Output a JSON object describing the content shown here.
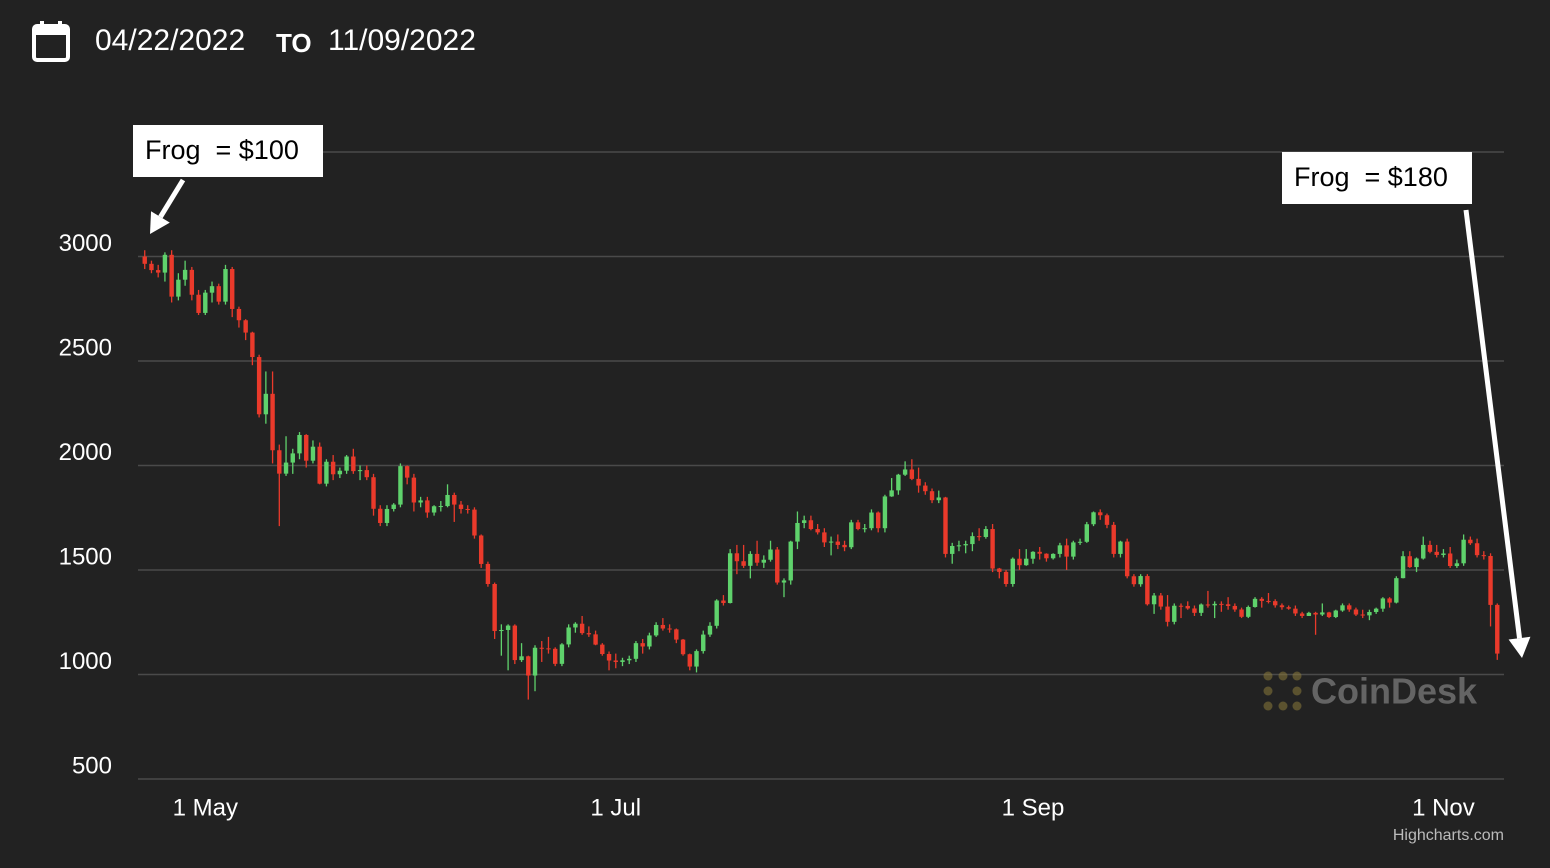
{
  "header": {
    "start": "04/22/2022",
    "connector": "TO",
    "end": "11/09/2022"
  },
  "chart_data": {
    "type": "candlestick",
    "x": [
      "2022-04-22",
      "2022-04-23",
      "2022-04-24",
      "2022-04-25",
      "2022-04-26",
      "2022-04-27",
      "2022-04-28",
      "2022-04-29",
      "2022-04-30",
      "2022-05-01",
      "2022-05-02",
      "2022-05-03",
      "2022-05-04",
      "2022-05-05",
      "2022-05-06",
      "2022-05-07",
      "2022-05-08",
      "2022-05-09",
      "2022-05-10",
      "2022-05-11",
      "2022-05-12",
      "2022-05-13",
      "2022-05-14",
      "2022-05-15",
      "2022-05-16",
      "2022-05-17",
      "2022-05-18",
      "2022-05-19",
      "2022-05-20",
      "2022-05-21",
      "2022-05-22",
      "2022-05-23",
      "2022-05-24",
      "2022-05-25",
      "2022-05-26",
      "2022-05-27",
      "2022-05-28",
      "2022-05-29",
      "2022-05-30",
      "2022-05-31",
      "2022-06-01",
      "2022-06-02",
      "2022-06-03",
      "2022-06-04",
      "2022-06-05",
      "2022-06-06",
      "2022-06-07",
      "2022-06-08",
      "2022-06-09",
      "2022-06-10",
      "2022-06-11",
      "2022-06-12",
      "2022-06-13",
      "2022-06-14",
      "2022-06-15",
      "2022-06-16",
      "2022-06-17",
      "2022-06-18",
      "2022-06-19",
      "2022-06-20",
      "2022-06-21",
      "2022-06-22",
      "2022-06-23",
      "2022-06-24",
      "2022-06-25",
      "2022-06-26",
      "2022-06-27",
      "2022-06-28",
      "2022-06-29",
      "2022-06-30",
      "2022-07-01",
      "2022-07-02",
      "2022-07-03",
      "2022-07-04",
      "2022-07-05",
      "2022-07-06",
      "2022-07-07",
      "2022-07-08",
      "2022-07-09",
      "2022-07-10",
      "2022-07-11",
      "2022-07-12",
      "2022-07-13",
      "2022-07-14",
      "2022-07-15",
      "2022-07-16",
      "2022-07-17",
      "2022-07-18",
      "2022-07-19",
      "2022-07-20",
      "2022-07-21",
      "2022-07-22",
      "2022-07-23",
      "2022-07-24",
      "2022-07-25",
      "2022-07-26",
      "2022-07-27",
      "2022-07-28",
      "2022-07-29",
      "2022-07-30",
      "2022-07-31",
      "2022-08-01",
      "2022-08-02",
      "2022-08-03",
      "2022-08-04",
      "2022-08-05",
      "2022-08-06",
      "2022-08-07",
      "2022-08-08",
      "2022-08-09",
      "2022-08-10",
      "2022-08-11",
      "2022-08-12",
      "2022-08-13",
      "2022-08-14",
      "2022-08-15",
      "2022-08-16",
      "2022-08-17",
      "2022-08-18",
      "2022-08-19",
      "2022-08-20",
      "2022-08-21",
      "2022-08-22",
      "2022-08-23",
      "2022-08-24",
      "2022-08-25",
      "2022-08-26",
      "2022-08-27",
      "2022-08-28",
      "2022-08-29",
      "2022-08-30",
      "2022-08-31",
      "2022-09-01",
      "2022-09-02",
      "2022-09-03",
      "2022-09-04",
      "2022-09-05",
      "2022-09-06",
      "2022-09-07",
      "2022-09-08",
      "2022-09-09",
      "2022-09-10",
      "2022-09-11",
      "2022-09-12",
      "2022-09-13",
      "2022-09-14",
      "2022-09-15",
      "2022-09-16",
      "2022-09-17",
      "2022-09-18",
      "2022-09-19",
      "2022-09-20",
      "2022-09-21",
      "2022-09-22",
      "2022-09-23",
      "2022-09-24",
      "2022-09-25",
      "2022-09-26",
      "2022-09-27",
      "2022-09-28",
      "2022-09-29",
      "2022-09-30",
      "2022-10-01",
      "2022-10-02",
      "2022-10-03",
      "2022-10-04",
      "2022-10-05",
      "2022-10-06",
      "2022-10-07",
      "2022-10-08",
      "2022-10-09",
      "2022-10-10",
      "2022-10-11",
      "2022-10-12",
      "2022-10-13",
      "2022-10-14",
      "2022-10-15",
      "2022-10-16",
      "2022-10-17",
      "2022-10-18",
      "2022-10-19",
      "2022-10-20",
      "2022-10-21",
      "2022-10-22",
      "2022-10-23",
      "2022-10-24",
      "2022-10-25",
      "2022-10-26",
      "2022-10-27",
      "2022-10-28",
      "2022-10-29",
      "2022-10-30",
      "2022-10-31",
      "2022-11-01",
      "2022-11-02",
      "2022-11-03",
      "2022-11-04",
      "2022-11-05",
      "2022-11-06",
      "2022-11-07",
      "2022-11-08",
      "2022-11-09"
    ],
    "values": [
      [
        3000,
        3030,
        2940,
        2965
      ],
      [
        2965,
        2980,
        2920,
        2935
      ],
      [
        2935,
        2960,
        2900,
        2923
      ],
      [
        2923,
        3020,
        2880,
        3008
      ],
      [
        3008,
        3030,
        2780,
        2808
      ],
      [
        2808,
        2920,
        2790,
        2889
      ],
      [
        2889,
        2980,
        2860,
        2936
      ],
      [
        2936,
        2950,
        2790,
        2817
      ],
      [
        2817,
        2840,
        2720,
        2730
      ],
      [
        2730,
        2840,
        2720,
        2827
      ],
      [
        2827,
        2880,
        2780,
        2858
      ],
      [
        2858,
        2870,
        2770,
        2784
      ],
      [
        2784,
        2960,
        2770,
        2940
      ],
      [
        2940,
        2950,
        2710,
        2749
      ],
      [
        2749,
        2760,
        2660,
        2695
      ],
      [
        2695,
        2700,
        2600,
        2636
      ],
      [
        2636,
        2640,
        2480,
        2519
      ],
      [
        2519,
        2530,
        2230,
        2245
      ],
      [
        2245,
        2450,
        2200,
        2343
      ],
      [
        2343,
        2450,
        2010,
        2073
      ],
      [
        2073,
        2100,
        1710,
        1961
      ],
      [
        1961,
        2140,
        1950,
        2014
      ],
      [
        2014,
        2080,
        1960,
        2058
      ],
      [
        2058,
        2160,
        2030,
        2146
      ],
      [
        2146,
        2150,
        1990,
        2023
      ],
      [
        2023,
        2120,
        2010,
        2090
      ],
      [
        2090,
        2110,
        1910,
        1913
      ],
      [
        1913,
        2030,
        1900,
        2018
      ],
      [
        2018,
        2050,
        1930,
        1958
      ],
      [
        1958,
        1990,
        1940,
        1975
      ],
      [
        1975,
        2050,
        1960,
        2043
      ],
      [
        2043,
        2080,
        1960,
        1973
      ],
      [
        1973,
        2000,
        1930,
        1978
      ],
      [
        1978,
        2000,
        1930,
        1944
      ],
      [
        1944,
        1960,
        1760,
        1793
      ],
      [
        1793,
        1810,
        1710,
        1725
      ],
      [
        1725,
        1810,
        1710,
        1792
      ],
      [
        1792,
        1820,
        1780,
        1813
      ],
      [
        1813,
        2010,
        1800,
        1997
      ],
      [
        1997,
        2000,
        1910,
        1942
      ],
      [
        1942,
        1960,
        1780,
        1823
      ],
      [
        1823,
        1850,
        1800,
        1833
      ],
      [
        1833,
        1850,
        1750,
        1775
      ],
      [
        1775,
        1810,
        1760,
        1805
      ],
      [
        1805,
        1830,
        1780,
        1806
      ],
      [
        1806,
        1910,
        1800,
        1859
      ],
      [
        1859,
        1870,
        1730,
        1813
      ],
      [
        1813,
        1830,
        1770,
        1792
      ],
      [
        1792,
        1810,
        1770,
        1789
      ],
      [
        1789,
        1800,
        1650,
        1665
      ],
      [
        1665,
        1670,
        1510,
        1529
      ],
      [
        1529,
        1540,
        1420,
        1433
      ],
      [
        1433,
        1440,
        1170,
        1208
      ],
      [
        1208,
        1240,
        1090,
        1213
      ],
      [
        1213,
        1240,
        1020,
        1234
      ],
      [
        1234,
        1240,
        1050,
        1069
      ],
      [
        1069,
        1150,
        1060,
        1087
      ],
      [
        1087,
        1090,
        880,
        995
      ],
      [
        995,
        1140,
        920,
        1128
      ],
      [
        1128,
        1160,
        1060,
        1125
      ],
      [
        1125,
        1180,
        1100,
        1123
      ],
      [
        1123,
        1130,
        1040,
        1051
      ],
      [
        1051,
        1150,
        1040,
        1144
      ],
      [
        1144,
        1240,
        1130,
        1225
      ],
      [
        1225,
        1250,
        1200,
        1243
      ],
      [
        1243,
        1280,
        1190,
        1198
      ],
      [
        1198,
        1230,
        1180,
        1192
      ],
      [
        1192,
        1210,
        1140,
        1143
      ],
      [
        1143,
        1150,
        1090,
        1098
      ],
      [
        1098,
        1110,
        1020,
        1067
      ],
      [
        1067,
        1100,
        1030,
        1060
      ],
      [
        1060,
        1080,
        1040,
        1068
      ],
      [
        1068,
        1090,
        1050,
        1075
      ],
      [
        1075,
        1160,
        1060,
        1150
      ],
      [
        1150,
        1170,
        1100,
        1134
      ],
      [
        1134,
        1200,
        1120,
        1187
      ],
      [
        1187,
        1250,
        1180,
        1237
      ],
      [
        1237,
        1270,
        1210,
        1220
      ],
      [
        1220,
        1240,
        1200,
        1216
      ],
      [
        1216,
        1220,
        1150,
        1167
      ],
      [
        1167,
        1170,
        1090,
        1097
      ],
      [
        1097,
        1100,
        1020,
        1038
      ],
      [
        1038,
        1120,
        1010,
        1112
      ],
      [
        1112,
        1210,
        1100,
        1191
      ],
      [
        1191,
        1250,
        1180,
        1233
      ],
      [
        1233,
        1360,
        1220,
        1354
      ],
      [
        1354,
        1380,
        1330,
        1342
      ],
      [
        1342,
        1600,
        1340,
        1580
      ],
      [
        1580,
        1620,
        1480,
        1542
      ],
      [
        1542,
        1620,
        1510,
        1520
      ],
      [
        1520,
        1590,
        1460,
        1577
      ],
      [
        1577,
        1640,
        1520,
        1535
      ],
      [
        1535,
        1570,
        1510,
        1549
      ],
      [
        1549,
        1640,
        1540,
        1598
      ],
      [
        1598,
        1610,
        1430,
        1440
      ],
      [
        1440,
        1460,
        1370,
        1450
      ],
      [
        1450,
        1640,
        1430,
        1636
      ],
      [
        1636,
        1780,
        1600,
        1725
      ],
      [
        1725,
        1760,
        1700,
        1738
      ],
      [
        1738,
        1760,
        1690,
        1696
      ],
      [
        1696,
        1720,
        1670,
        1680
      ],
      [
        1680,
        1700,
        1610,
        1632
      ],
      [
        1632,
        1660,
        1570,
        1636
      ],
      [
        1636,
        1670,
        1600,
        1620
      ],
      [
        1620,
        1640,
        1590,
        1609
      ],
      [
        1609,
        1740,
        1600,
        1728
      ],
      [
        1728,
        1740,
        1690,
        1696
      ],
      [
        1696,
        1720,
        1680,
        1700
      ],
      [
        1700,
        1790,
        1690,
        1775
      ],
      [
        1775,
        1780,
        1680,
        1700
      ],
      [
        1700,
        1860,
        1680,
        1852
      ],
      [
        1852,
        1940,
        1850,
        1881
      ],
      [
        1881,
        1960,
        1860,
        1956
      ],
      [
        1956,
        2020,
        1950,
        1981
      ],
      [
        1981,
        2030,
        1930,
        1936
      ],
      [
        1936,
        1990,
        1870,
        1904
      ],
      [
        1904,
        1920,
        1860,
        1877
      ],
      [
        1877,
        1890,
        1820,
        1834
      ],
      [
        1834,
        1880,
        1820,
        1847
      ],
      [
        1847,
        1850,
        1560,
        1577
      ],
      [
        1577,
        1630,
        1530,
        1615
      ],
      [
        1615,
        1640,
        1590,
        1618
      ],
      [
        1618,
        1640,
        1580,
        1624
      ],
      [
        1624,
        1680,
        1590,
        1662
      ],
      [
        1662,
        1700,
        1640,
        1658
      ],
      [
        1658,
        1710,
        1650,
        1696
      ],
      [
        1696,
        1720,
        1490,
        1507
      ],
      [
        1507,
        1510,
        1460,
        1491
      ],
      [
        1491,
        1500,
        1420,
        1433
      ],
      [
        1433,
        1560,
        1420,
        1554
      ],
      [
        1554,
        1600,
        1500,
        1523
      ],
      [
        1523,
        1600,
        1520,
        1554
      ],
      [
        1554,
        1590,
        1530,
        1587
      ],
      [
        1587,
        1610,
        1550,
        1578
      ],
      [
        1578,
        1580,
        1540,
        1556
      ],
      [
        1556,
        1580,
        1550,
        1577
      ],
      [
        1577,
        1630,
        1560,
        1618
      ],
      [
        1618,
        1650,
        1500,
        1564
      ],
      [
        1564,
        1640,
        1550,
        1632
      ],
      [
        1632,
        1650,
        1620,
        1635
      ],
      [
        1635,
        1730,
        1630,
        1719
      ],
      [
        1719,
        1780,
        1710,
        1776
      ],
      [
        1776,
        1790,
        1740,
        1762
      ],
      [
        1762,
        1770,
        1700,
        1716
      ],
      [
        1716,
        1730,
        1560,
        1577
      ],
      [
        1577,
        1640,
        1560,
        1636
      ],
      [
        1636,
        1650,
        1460,
        1470
      ],
      [
        1470,
        1480,
        1420,
        1432
      ],
      [
        1432,
        1480,
        1420,
        1471
      ],
      [
        1471,
        1480,
        1330,
        1336
      ],
      [
        1336,
        1390,
        1290,
        1378
      ],
      [
        1378,
        1390,
        1310,
        1325
      ],
      [
        1325,
        1380,
        1230,
        1252
      ],
      [
        1252,
        1340,
        1240,
        1329
      ],
      [
        1329,
        1340,
        1270,
        1328
      ],
      [
        1328,
        1350,
        1310,
        1316
      ],
      [
        1316,
        1330,
        1280,
        1295
      ],
      [
        1295,
        1340,
        1280,
        1335
      ],
      [
        1335,
        1400,
        1320,
        1331
      ],
      [
        1331,
        1350,
        1270,
        1338
      ],
      [
        1338,
        1350,
        1300,
        1336
      ],
      [
        1336,
        1370,
        1310,
        1328
      ],
      [
        1328,
        1340,
        1300,
        1311
      ],
      [
        1311,
        1320,
        1270,
        1276
      ],
      [
        1276,
        1330,
        1270,
        1323
      ],
      [
        1323,
        1370,
        1320,
        1362
      ],
      [
        1362,
        1370,
        1320,
        1352
      ],
      [
        1352,
        1390,
        1340,
        1351
      ],
      [
        1351,
        1360,
        1320,
        1331
      ],
      [
        1331,
        1340,
        1310,
        1322
      ],
      [
        1322,
        1330,
        1310,
        1315
      ],
      [
        1315,
        1330,
        1280,
        1292
      ],
      [
        1292,
        1300,
        1270,
        1280
      ],
      [
        1280,
        1300,
        1280,
        1295
      ],
      [
        1295,
        1300,
        1190,
        1287
      ],
      [
        1287,
        1340,
        1280,
        1297
      ],
      [
        1297,
        1300,
        1270,
        1275
      ],
      [
        1275,
        1310,
        1270,
        1306
      ],
      [
        1306,
        1340,
        1300,
        1331
      ],
      [
        1331,
        1340,
        1300,
        1311
      ],
      [
        1311,
        1320,
        1280,
        1287
      ],
      [
        1287,
        1310,
        1270,
        1283
      ],
      [
        1283,
        1310,
        1260,
        1299
      ],
      [
        1299,
        1320,
        1290,
        1315
      ],
      [
        1315,
        1370,
        1300,
        1364
      ],
      [
        1364,
        1370,
        1320,
        1344
      ],
      [
        1344,
        1470,
        1340,
        1461
      ],
      [
        1461,
        1590,
        1460,
        1566
      ],
      [
        1566,
        1590,
        1510,
        1514
      ],
      [
        1514,
        1560,
        1490,
        1555
      ],
      [
        1555,
        1660,
        1550,
        1620
      ],
      [
        1620,
        1640,
        1580,
        1587
      ],
      [
        1587,
        1620,
        1560,
        1572
      ],
      [
        1572,
        1600,
        1560,
        1579
      ],
      [
        1579,
        1610,
        1510,
        1519
      ],
      [
        1519,
        1550,
        1510,
        1532
      ],
      [
        1532,
        1670,
        1520,
        1645
      ],
      [
        1645,
        1660,
        1620,
        1628
      ],
      [
        1628,
        1650,
        1560,
        1571
      ],
      [
        1571,
        1590,
        1550,
        1567
      ],
      [
        1567,
        1580,
        1230,
        1333
      ],
      [
        1333,
        1340,
        1070,
        1100
      ]
    ],
    "up_color": "#5fd26c",
    "down_color": "#ea3a2b",
    "xlim": [
      "2022-04-21",
      "2022-11-10"
    ],
    "xticks": [
      {
        "value": "2022-05-01",
        "label": "1 May"
      },
      {
        "value": "2022-07-01",
        "label": "1 Jul"
      },
      {
        "value": "2022-09-01",
        "label": "1 Sep"
      },
      {
        "value": "2022-11-01",
        "label": "1 Nov"
      }
    ],
    "ylim": [
      500,
      3500
    ],
    "yticks": [
      500,
      1000,
      1500,
      2000,
      2500,
      3000
    ],
    "grid": true,
    "annotations": [
      {
        "text": "Frog  = $100",
        "x": "2022-04-22",
        "y": 3000
      },
      {
        "text": "Frog  = $180",
        "x": "2022-11-09",
        "y": 1100
      }
    ],
    "watermark": "CoinDesk",
    "credits": "Highcharts.com"
  }
}
